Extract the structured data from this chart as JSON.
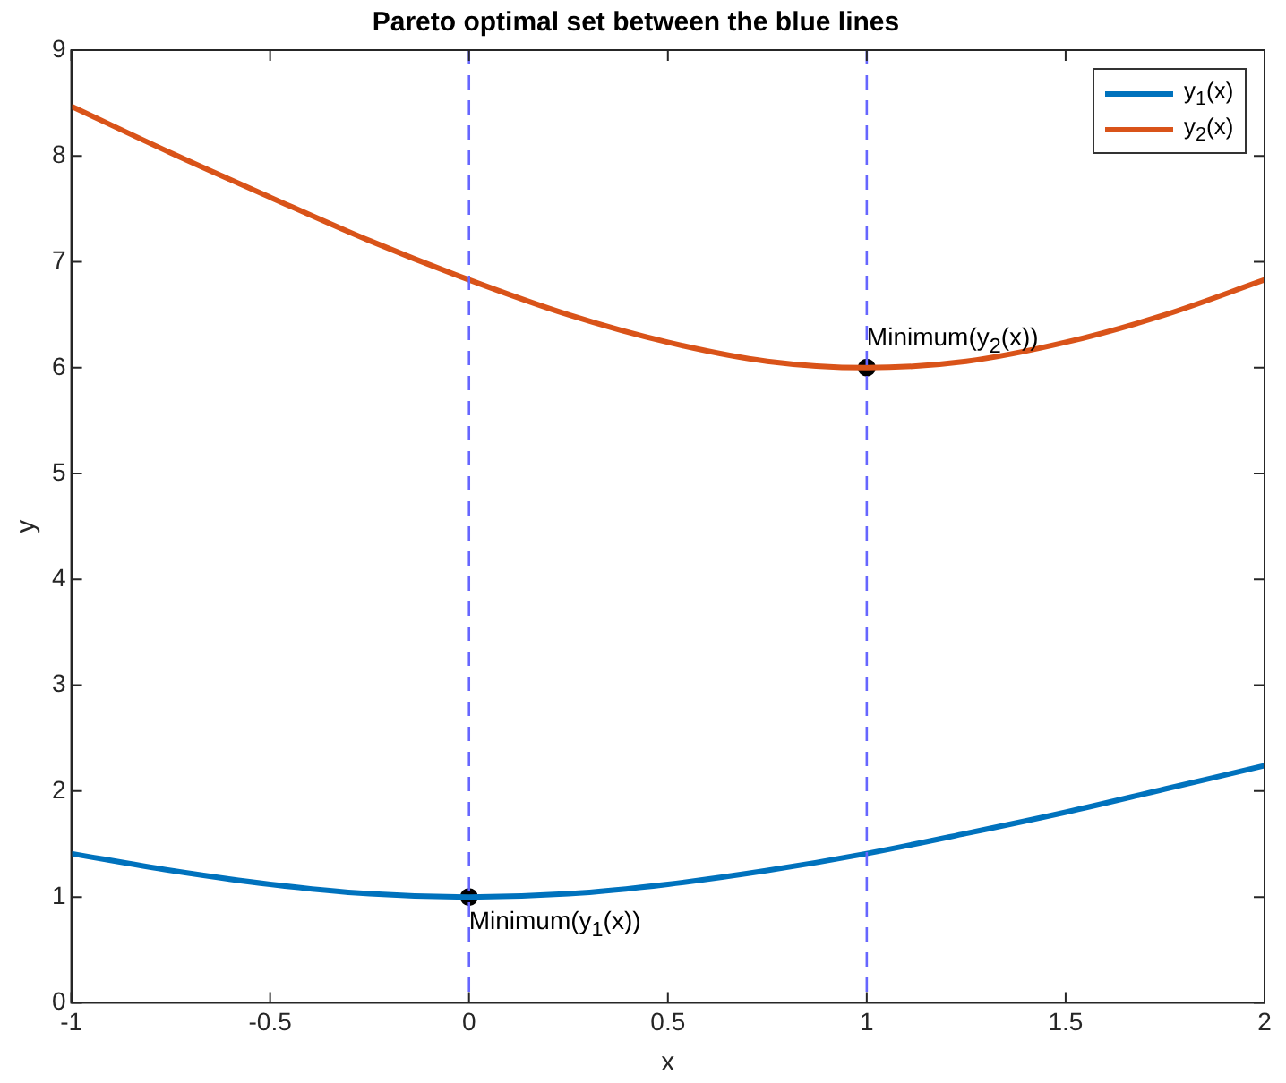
{
  "chart_data": {
    "type": "line",
    "title": "Pareto optimal set between the blue lines",
    "xlabel": "x",
    "ylabel": "y",
    "xlim": [
      -1,
      2
    ],
    "xticks": [
      -1,
      -0.5,
      0,
      0.5,
      1,
      1.5,
      2
    ],
    "ylim": [
      0,
      9
    ],
    "yticks": [
      0,
      1,
      2,
      3,
      4,
      5,
      6,
      7,
      8,
      9
    ],
    "grid": false,
    "legend": "top right",
    "marker": "none",
    "line_style": "solid",
    "series": [
      {
        "name": "y$_{1}$(x)",
        "color": "#0072bd",
        "x": [
          -1,
          -0.75,
          -0.5,
          -0.25,
          0,
          0.25,
          0.5,
          0.75,
          1,
          1.25,
          1.5,
          1.75,
          2
        ],
        "values": [
          1.41,
          1.25,
          1.12,
          1.03,
          1,
          1.03,
          1.12,
          1.25,
          1.41,
          1.6,
          1.8,
          2.02,
          2.24
        ]
      },
      {
        "name": "y$_{2}$(x)",
        "color": "#d95319",
        "x": [
          -1,
          -0.75,
          -0.5,
          -0.25,
          0,
          0.25,
          0.5,
          0.75,
          1,
          1.25,
          1.5,
          1.75,
          2
        ],
        "values": [
          8.47,
          8.03,
          7.61,
          7.2,
          6.83,
          6.5,
          6.24,
          6.06,
          6,
          6.06,
          6.24,
          6.5,
          6.83
        ]
      },
      {
        "type": "scatter",
        "marker": "circle",
        "color": "#000000",
        "x": [
          0,
          1
        ],
        "values": [
          1,
          6
        ]
      }
    ],
    "ref_lines": [
      {
        "axis": "x",
        "value": 0,
        "color": "#6666ff",
        "line_style": "dashed"
      },
      {
        "axis": "x",
        "value": 1,
        "color": "#6666ff",
        "line_style": "dashed"
      }
    ],
    "annotations": [
      {
        "text": "Minimum(y$_{1}$(x))",
        "x": 0,
        "y": 1
      },
      {
        "text": "Minimum(y$_{2}$(x))",
        "x": 1,
        "y": 6
      }
    ]
  }
}
